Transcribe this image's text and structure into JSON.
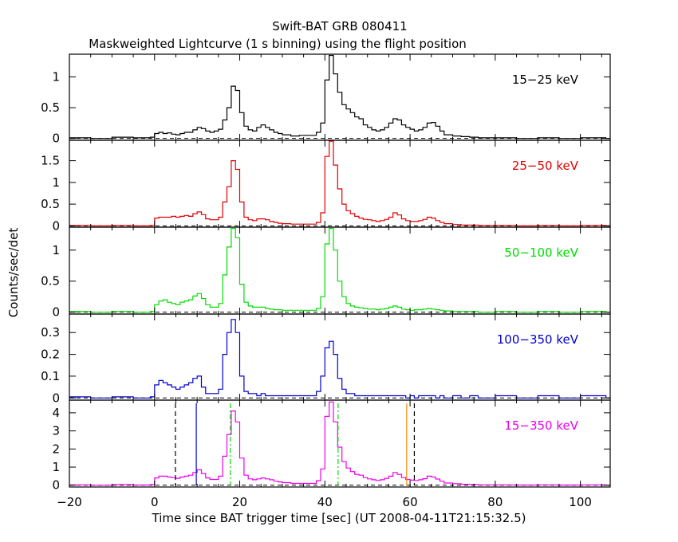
{
  "chart_data": {
    "type": "line",
    "title": "Swift-BAT GRB 080411",
    "subtitle": "Maskweighted Lightcurve (1 s binning) using the flight position",
    "xlabel": "Time since BAT trigger time [sec] (UT 2008-04-11T21:15:32.5)",
    "ylabel": "Counts/sec/det",
    "xlim": [
      -20,
      107
    ],
    "xticks": [
      -20,
      0,
      20,
      40,
      60,
      80,
      100
    ],
    "xtick_labels": [
      "−20",
      "0",
      "20",
      "40",
      "60",
      "80",
      "100"
    ],
    "panels": [
      {
        "label": "15−25 keV",
        "color": "#000000",
        "ylim": [
          -0.03,
          1.37
        ],
        "yticks": [
          0,
          0.5,
          1
        ],
        "ytick_labels": [
          "0",
          "0.5",
          "1"
        ],
        "t": [
          -20,
          -15,
          -10,
          -5,
          -1,
          0,
          1,
          2,
          3,
          4,
          5,
          6,
          7,
          8,
          9,
          10,
          11,
          12,
          13,
          14,
          15,
          16,
          17,
          18,
          19,
          20,
          21,
          22,
          23,
          24,
          25,
          26,
          27,
          28,
          29,
          30,
          32,
          34,
          36,
          38,
          39,
          40,
          41,
          42,
          43,
          44,
          45,
          46,
          47,
          48,
          49,
          50,
          51,
          52,
          53,
          54,
          55,
          56,
          57,
          58,
          59,
          60,
          61,
          62,
          63,
          64,
          65,
          66,
          67,
          68,
          70,
          72,
          74,
          76,
          80,
          85,
          90,
          95,
          100,
          106
        ],
        "v": [
          0.01,
          0.0,
          0.02,
          0.01,
          0.02,
          0.08,
          0.1,
          0.08,
          0.09,
          0.07,
          0.06,
          0.08,
          0.1,
          0.1,
          0.14,
          0.18,
          0.16,
          0.12,
          0.1,
          0.12,
          0.15,
          0.3,
          0.5,
          0.85,
          0.78,
          0.42,
          0.2,
          0.14,
          0.12,
          0.18,
          0.22,
          0.18,
          0.14,
          0.1,
          0.08,
          0.06,
          0.04,
          0.05,
          0.05,
          0.1,
          0.25,
          0.95,
          1.35,
          1.05,
          0.75,
          0.55,
          0.48,
          0.42,
          0.35,
          0.32,
          0.22,
          0.18,
          0.14,
          0.12,
          0.14,
          0.18,
          0.25,
          0.32,
          0.3,
          0.22,
          0.18,
          0.15,
          0.12,
          0.14,
          0.18,
          0.25,
          0.26,
          0.2,
          0.12,
          0.06,
          0.04,
          0.03,
          0.02,
          0.01,
          0.01,
          0.0,
          0.01,
          0.0,
          0.01,
          0.0
        ]
      },
      {
        "label": "25−50 keV",
        "color": "#e00000",
        "ylim": [
          -0.03,
          1.97
        ],
        "yticks": [
          0,
          0.5,
          1,
          1.5
        ],
        "ytick_labels": [
          "0",
          "0.5",
          "1",
          "1.5"
        ],
        "t": [
          -20,
          -15,
          -10,
          -5,
          -1,
          0,
          1,
          2,
          3,
          4,
          5,
          6,
          7,
          8,
          9,
          10,
          11,
          12,
          13,
          14,
          15,
          16,
          17,
          18,
          19,
          20,
          21,
          22,
          23,
          24,
          25,
          26,
          27,
          28,
          29,
          30,
          32,
          34,
          36,
          38,
          39,
          40,
          41,
          42,
          43,
          44,
          45,
          46,
          47,
          48,
          49,
          50,
          51,
          52,
          53,
          54,
          55,
          56,
          57,
          58,
          59,
          60,
          61,
          62,
          63,
          64,
          65,
          66,
          67,
          68,
          70,
          72,
          74,
          76,
          80,
          85,
          90,
          95,
          100,
          106
        ],
        "v": [
          0.01,
          0.0,
          0.01,
          0.0,
          0.01,
          0.18,
          0.2,
          0.2,
          0.2,
          0.22,
          0.2,
          0.22,
          0.24,
          0.22,
          0.28,
          0.32,
          0.26,
          0.16,
          0.14,
          0.14,
          0.2,
          0.55,
          0.9,
          1.5,
          1.3,
          0.55,
          0.2,
          0.14,
          0.12,
          0.16,
          0.16,
          0.14,
          0.1,
          0.08,
          0.06,
          0.05,
          0.04,
          0.04,
          0.04,
          0.08,
          0.3,
          1.6,
          1.95,
          1.4,
          0.85,
          0.5,
          0.35,
          0.28,
          0.22,
          0.18,
          0.15,
          0.14,
          0.12,
          0.1,
          0.12,
          0.15,
          0.2,
          0.3,
          0.25,
          0.16,
          0.12,
          0.1,
          0.1,
          0.12,
          0.15,
          0.2,
          0.18,
          0.12,
          0.08,
          0.05,
          0.03,
          0.02,
          0.02,
          0.01,
          0.01,
          0.0,
          0.01,
          0.0,
          0.01,
          0.0
        ]
      },
      {
        "label": "50−100 keV",
        "color": "#00dd00",
        "ylim": [
          -0.03,
          1.37
        ],
        "yticks": [
          0,
          0.5,
          1
        ],
        "ytick_labels": [
          "0",
          "0.5",
          "1"
        ],
        "t": [
          -20,
          -15,
          -10,
          -5,
          -1,
          0,
          1,
          2,
          3,
          4,
          5,
          6,
          7,
          8,
          9,
          10,
          11,
          12,
          13,
          14,
          15,
          16,
          17,
          18,
          19,
          20,
          21,
          22,
          23,
          24,
          25,
          26,
          27,
          28,
          29,
          30,
          32,
          34,
          36,
          38,
          39,
          40,
          41,
          42,
          43,
          44,
          45,
          46,
          47,
          48,
          49,
          50,
          51,
          52,
          53,
          54,
          55,
          56,
          57,
          58,
          59,
          60,
          61,
          62,
          63,
          64,
          65,
          66,
          67,
          68,
          70,
          72,
          74,
          76,
          80,
          85,
          90,
          95,
          100,
          106
        ],
        "v": [
          0.01,
          0.0,
          0.01,
          0.0,
          0.01,
          0.12,
          0.18,
          0.2,
          0.16,
          0.14,
          0.12,
          0.16,
          0.18,
          0.2,
          0.26,
          0.3,
          0.22,
          0.12,
          0.08,
          0.08,
          0.14,
          0.6,
          1.05,
          1.35,
          1.2,
          0.45,
          0.16,
          0.1,
          0.08,
          0.08,
          0.08,
          0.06,
          0.05,
          0.04,
          0.04,
          0.03,
          0.03,
          0.03,
          0.03,
          0.06,
          0.25,
          1.1,
          1.35,
          1.0,
          0.5,
          0.25,
          0.14,
          0.1,
          0.08,
          0.07,
          0.06,
          0.05,
          0.05,
          0.04,
          0.05,
          0.06,
          0.08,
          0.1,
          0.08,
          0.05,
          0.04,
          0.03,
          0.04,
          0.04,
          0.05,
          0.06,
          0.05,
          0.04,
          0.03,
          0.02,
          0.01,
          0.01,
          0.01,
          0.0,
          0.01,
          0.0,
          0.01,
          0.0,
          0.01,
          0.0
        ]
      },
      {
        "label": "100−350 keV",
        "color": "#0000cc",
        "ylim": [
          -0.01,
          0.385
        ],
        "yticks": [
          0,
          0.1,
          0.2,
          0.3
        ],
        "ytick_labels": [
          "0",
          "0.1",
          "0.2",
          "0.3"
        ],
        "t": [
          -20,
          -15,
          -10,
          -5,
          -1,
          0,
          1,
          2,
          3,
          4,
          5,
          6,
          7,
          8,
          9,
          10,
          11,
          12,
          13,
          14,
          15,
          16,
          17,
          18,
          19,
          20,
          21,
          22,
          23,
          24,
          25,
          26,
          27,
          28,
          29,
          30,
          32,
          34,
          36,
          38,
          39,
          40,
          41,
          42,
          43,
          44,
          45,
          46,
          47,
          48,
          49,
          50,
          51,
          52,
          53,
          54,
          55,
          56,
          57,
          58,
          59,
          60,
          61,
          62,
          63,
          64,
          65,
          66,
          67,
          68,
          70,
          72,
          74,
          76,
          80,
          85,
          90,
          95,
          100,
          106
        ],
        "v": [
          0.005,
          0.0,
          0.005,
          0.0,
          0.005,
          0.06,
          0.08,
          0.07,
          0.06,
          0.05,
          0.04,
          0.05,
          0.06,
          0.07,
          0.09,
          0.1,
          0.05,
          0.02,
          0.02,
          0.02,
          0.04,
          0.2,
          0.3,
          0.36,
          0.3,
          0.1,
          0.03,
          0.02,
          0.02,
          0.01,
          0.02,
          0.01,
          0.01,
          0.01,
          0.01,
          0.01,
          0.01,
          0.01,
          0.01,
          0.03,
          0.1,
          0.23,
          0.26,
          0.2,
          0.09,
          0.04,
          0.02,
          0.02,
          0.01,
          0.01,
          0.01,
          0.01,
          0.01,
          0.01,
          0.01,
          0.01,
          0.01,
          0.01,
          0.01,
          0.01,
          0.0,
          0.01,
          0.0,
          0.01,
          0.01,
          0.01,
          0.01,
          0.0,
          0.01,
          0.0,
          0.01,
          0.0,
          0.01,
          0.0,
          0.01,
          0.0,
          0.01,
          0.0,
          0.01,
          0.0
        ]
      },
      {
        "label": "15−350 keV",
        "color": "#ee00ee",
        "ylim": [
          -0.1,
          4.7
        ],
        "yticks": [
          0,
          1,
          2,
          3,
          4
        ],
        "ytick_labels": [
          "0",
          "1",
          "2",
          "3",
          "4"
        ],
        "t": [
          -20,
          -15,
          -10,
          -5,
          -1,
          0,
          1,
          2,
          3,
          4,
          5,
          6,
          7,
          8,
          9,
          10,
          11,
          12,
          13,
          14,
          15,
          16,
          17,
          18,
          19,
          20,
          21,
          22,
          23,
          24,
          25,
          26,
          27,
          28,
          29,
          30,
          32,
          34,
          36,
          38,
          39,
          40,
          41,
          42,
          43,
          44,
          45,
          46,
          47,
          48,
          49,
          50,
          51,
          52,
          53,
          54,
          55,
          56,
          57,
          58,
          59,
          60,
          61,
          62,
          63,
          64,
          65,
          66,
          67,
          68,
          70,
          72,
          74,
          76,
          80,
          85,
          90,
          95,
          100,
          106
        ],
        "v": [
          0.02,
          0.0,
          0.03,
          0.01,
          0.03,
          0.4,
          0.5,
          0.5,
          0.45,
          0.42,
          0.38,
          0.45,
          0.5,
          0.55,
          0.7,
          0.85,
          0.65,
          0.4,
          0.32,
          0.32,
          0.5,
          1.6,
          2.8,
          4.1,
          3.5,
          1.5,
          0.55,
          0.35,
          0.3,
          0.35,
          0.4,
          0.35,
          0.3,
          0.22,
          0.18,
          0.14,
          0.1,
          0.1,
          0.1,
          0.25,
          0.9,
          3.8,
          4.6,
          3.5,
          2.1,
          1.3,
          0.95,
          0.75,
          0.6,
          0.55,
          0.42,
          0.35,
          0.3,
          0.26,
          0.3,
          0.38,
          0.5,
          0.7,
          0.6,
          0.42,
          0.32,
          0.28,
          0.26,
          0.3,
          0.36,
          0.5,
          0.45,
          0.34,
          0.22,
          0.12,
          0.08,
          0.05,
          0.04,
          0.02,
          0.02,
          0.01,
          0.02,
          0.01,
          0.02,
          0.0
        ]
      }
    ],
    "markers": [
      {
        "t": 4.9,
        "color": "#000000",
        "style": "dashed"
      },
      {
        "t": 9.8,
        "color": "#0000cc",
        "style": "solid"
      },
      {
        "t": 17.8,
        "color": "#00dd00",
        "style": "dashdot"
      },
      {
        "t": 43.1,
        "color": "#00dd00",
        "style": "dashdot"
      },
      {
        "t": 59.2,
        "color": "#ff8800",
        "style": "solid"
      },
      {
        "t": 61.0,
        "color": "#000000",
        "style": "dashed"
      }
    ],
    "grid": false,
    "legend": "none"
  }
}
